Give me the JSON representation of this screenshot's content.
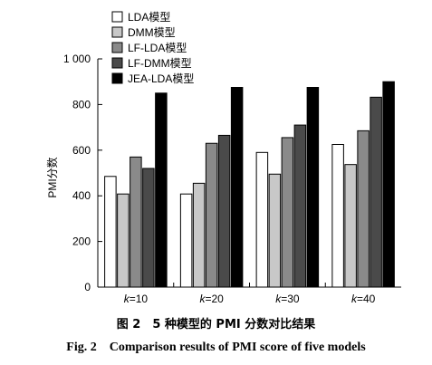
{
  "chart_data": {
    "type": "bar",
    "categories": [
      "k=10",
      "k=20",
      "k=30",
      "k=40"
    ],
    "ylabel": "PMI分数",
    "xlabel": "",
    "ylim": [
      0,
      1000
    ],
    "yticks": [
      0,
      200,
      400,
      600,
      800,
      1000
    ],
    "ytick_labels": [
      "0",
      "200",
      "400",
      "600",
      "800",
      "1 000"
    ],
    "grid": false,
    "legend_position": "top-left",
    "series": [
      {
        "name": "LDA模型",
        "color": "#ffffff",
        "values": [
          485,
          408,
          590,
          625
        ]
      },
      {
        "name": "DMM模型",
        "color": "#c8c8c8",
        "values": [
          408,
          455,
          495,
          537
        ]
      },
      {
        "name": "LF-LDA模型",
        "color": "#8a8a8a",
        "values": [
          570,
          630,
          655,
          685
        ]
      },
      {
        "name": "LF-DMM模型",
        "color": "#4a4a4a",
        "values": [
          520,
          665,
          710,
          832
        ]
      },
      {
        "name": "JEA-LDA模型",
        "color": "#000000",
        "values": [
          850,
          875,
          875,
          900
        ]
      }
    ]
  },
  "caption": {
    "cn": "图 2　5 种模型的 PMI 分数对比结果",
    "en": "Fig. 2　Comparison results of PMI score of five models"
  }
}
